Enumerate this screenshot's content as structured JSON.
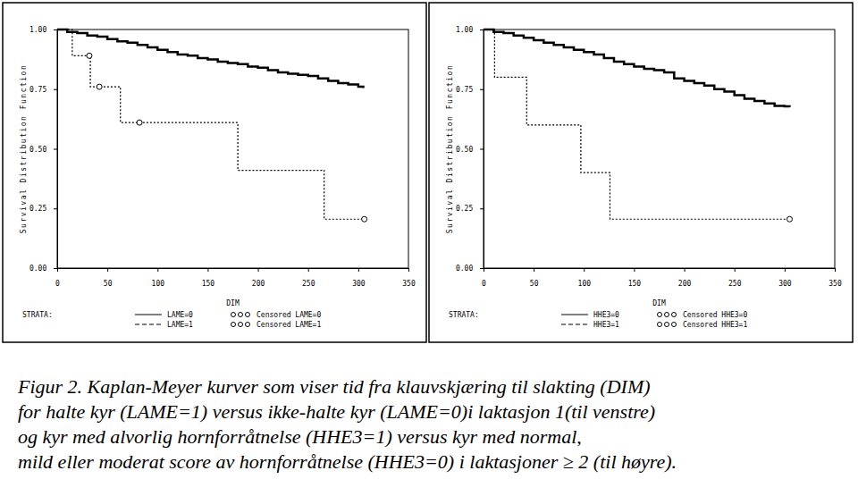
{
  "chart_data": [
    {
      "type": "line",
      "x_label": "DIM",
      "y_label": "Survival Distribution Function",
      "legend_title": "STRATA:",
      "xlim": [
        0,
        350
      ],
      "xticks": [
        0,
        50,
        100,
        150,
        200,
        250,
        300,
        350
      ],
      "ylim": [
        0,
        1
      ],
      "yticks": [
        {
          "value": 0,
          "label": "0.00"
        },
        {
          "value": 0.25,
          "label": "0.25"
        },
        {
          "value": 0.5,
          "label": "0.50"
        },
        {
          "value": 0.75,
          "label": "0.75"
        },
        {
          "value": 1,
          "label": "1.00"
        }
      ],
      "grid": false,
      "series": [
        {
          "name": "LAME=0",
          "type": "line",
          "line_style": "solid",
          "color": "#000000",
          "x": [
            0,
            10,
            20,
            30,
            40,
            50,
            60,
            70,
            80,
            90,
            100,
            110,
            120,
            130,
            140,
            150,
            160,
            170,
            180,
            190,
            200,
            210,
            220,
            230,
            240,
            250,
            260,
            270,
            280,
            290,
            300,
            305
          ],
          "values": [
            1.0,
            0.99,
            0.985,
            0.975,
            0.97,
            0.96,
            0.95,
            0.945,
            0.935,
            0.925,
            0.915,
            0.905,
            0.895,
            0.89,
            0.88,
            0.875,
            0.865,
            0.86,
            0.855,
            0.845,
            0.84,
            0.83,
            0.82,
            0.815,
            0.81,
            0.805,
            0.795,
            0.785,
            0.775,
            0.77,
            0.76,
            0.755
          ]
        },
        {
          "name": "LAME=1",
          "type": "line",
          "line_style": "dashed",
          "color": "#000000",
          "x": [
            0,
            15,
            33,
            63,
            180,
            266,
            306
          ],
          "values": [
            1.0,
            0.89,
            0.76,
            0.61,
            0.41,
            0.205,
            0.205
          ]
        },
        {
          "name": "Censored LAME=0",
          "type": "scatter",
          "marker": "circle",
          "color": "#000000",
          "x": [],
          "values": []
        },
        {
          "name": "Censored LAME=1",
          "type": "scatter",
          "marker": "circle",
          "color": "#000000",
          "x": [
            32,
            42,
            82,
            306
          ],
          "values": [
            0.89,
            0.76,
            0.61,
            0.205
          ]
        }
      ]
    },
    {
      "type": "line",
      "x_label": "DIM",
      "y_label": "Survival Distribution Function",
      "legend_title": "STRATA:",
      "xlim": [
        0,
        350
      ],
      "xticks": [
        0,
        50,
        100,
        150,
        200,
        250,
        300,
        350
      ],
      "ylim": [
        0,
        1
      ],
      "yticks": [
        {
          "value": 0,
          "label": "0.00"
        },
        {
          "value": 0.25,
          "label": "0.25"
        },
        {
          "value": 0.5,
          "label": "0.50"
        },
        {
          "value": 0.75,
          "label": "0.75"
        },
        {
          "value": 1,
          "label": "1.00"
        }
      ],
      "grid": false,
      "series": [
        {
          "name": "HHE3=0",
          "type": "line",
          "line_style": "solid",
          "color": "#000000",
          "x": [
            0,
            10,
            20,
            30,
            40,
            50,
            60,
            70,
            80,
            90,
            100,
            110,
            120,
            130,
            140,
            150,
            160,
            170,
            180,
            190,
            200,
            210,
            220,
            230,
            240,
            250,
            260,
            270,
            280,
            290,
            300,
            305
          ],
          "values": [
            1.0,
            0.99,
            0.985,
            0.975,
            0.965,
            0.955,
            0.945,
            0.935,
            0.925,
            0.915,
            0.905,
            0.895,
            0.88,
            0.865,
            0.855,
            0.845,
            0.835,
            0.83,
            0.82,
            0.795,
            0.785,
            0.775,
            0.765,
            0.75,
            0.74,
            0.725,
            0.71,
            0.7,
            0.69,
            0.68,
            0.678,
            0.675
          ]
        },
        {
          "name": "HHE3=1",
          "type": "line",
          "line_style": "dashed",
          "color": "#000000",
          "x": [
            0,
            11,
            43,
            97,
            126,
            305
          ],
          "values": [
            1.0,
            0.8,
            0.6,
            0.4,
            0.205,
            0.205
          ]
        },
        {
          "name": "Censored HHE3=0",
          "type": "scatter",
          "marker": "circle",
          "color": "#000000",
          "x": [],
          "values": []
        },
        {
          "name": "Censored HHE3=1",
          "type": "scatter",
          "marker": "circle",
          "color": "#000000",
          "x": [
            305
          ],
          "values": [
            0.205
          ]
        }
      ]
    }
  ],
  "caption": [
    "Figur 2. Kaplan-Meyer kurver som viser tid fra klauvskjæring til slakting (DIM)",
    "for halte kyr (LAME=1) versus ikke-halte kyr (LAME=0)i laktasjon 1(til venstre)",
    "og kyr med alvorlig hornforråtnelse (HHE3=1) versus kyr med normal,",
    "mild eller moderat score av hornforråtnelse (HHE3=0) i laktasjoner  ≥ 2 (til høyre)."
  ]
}
